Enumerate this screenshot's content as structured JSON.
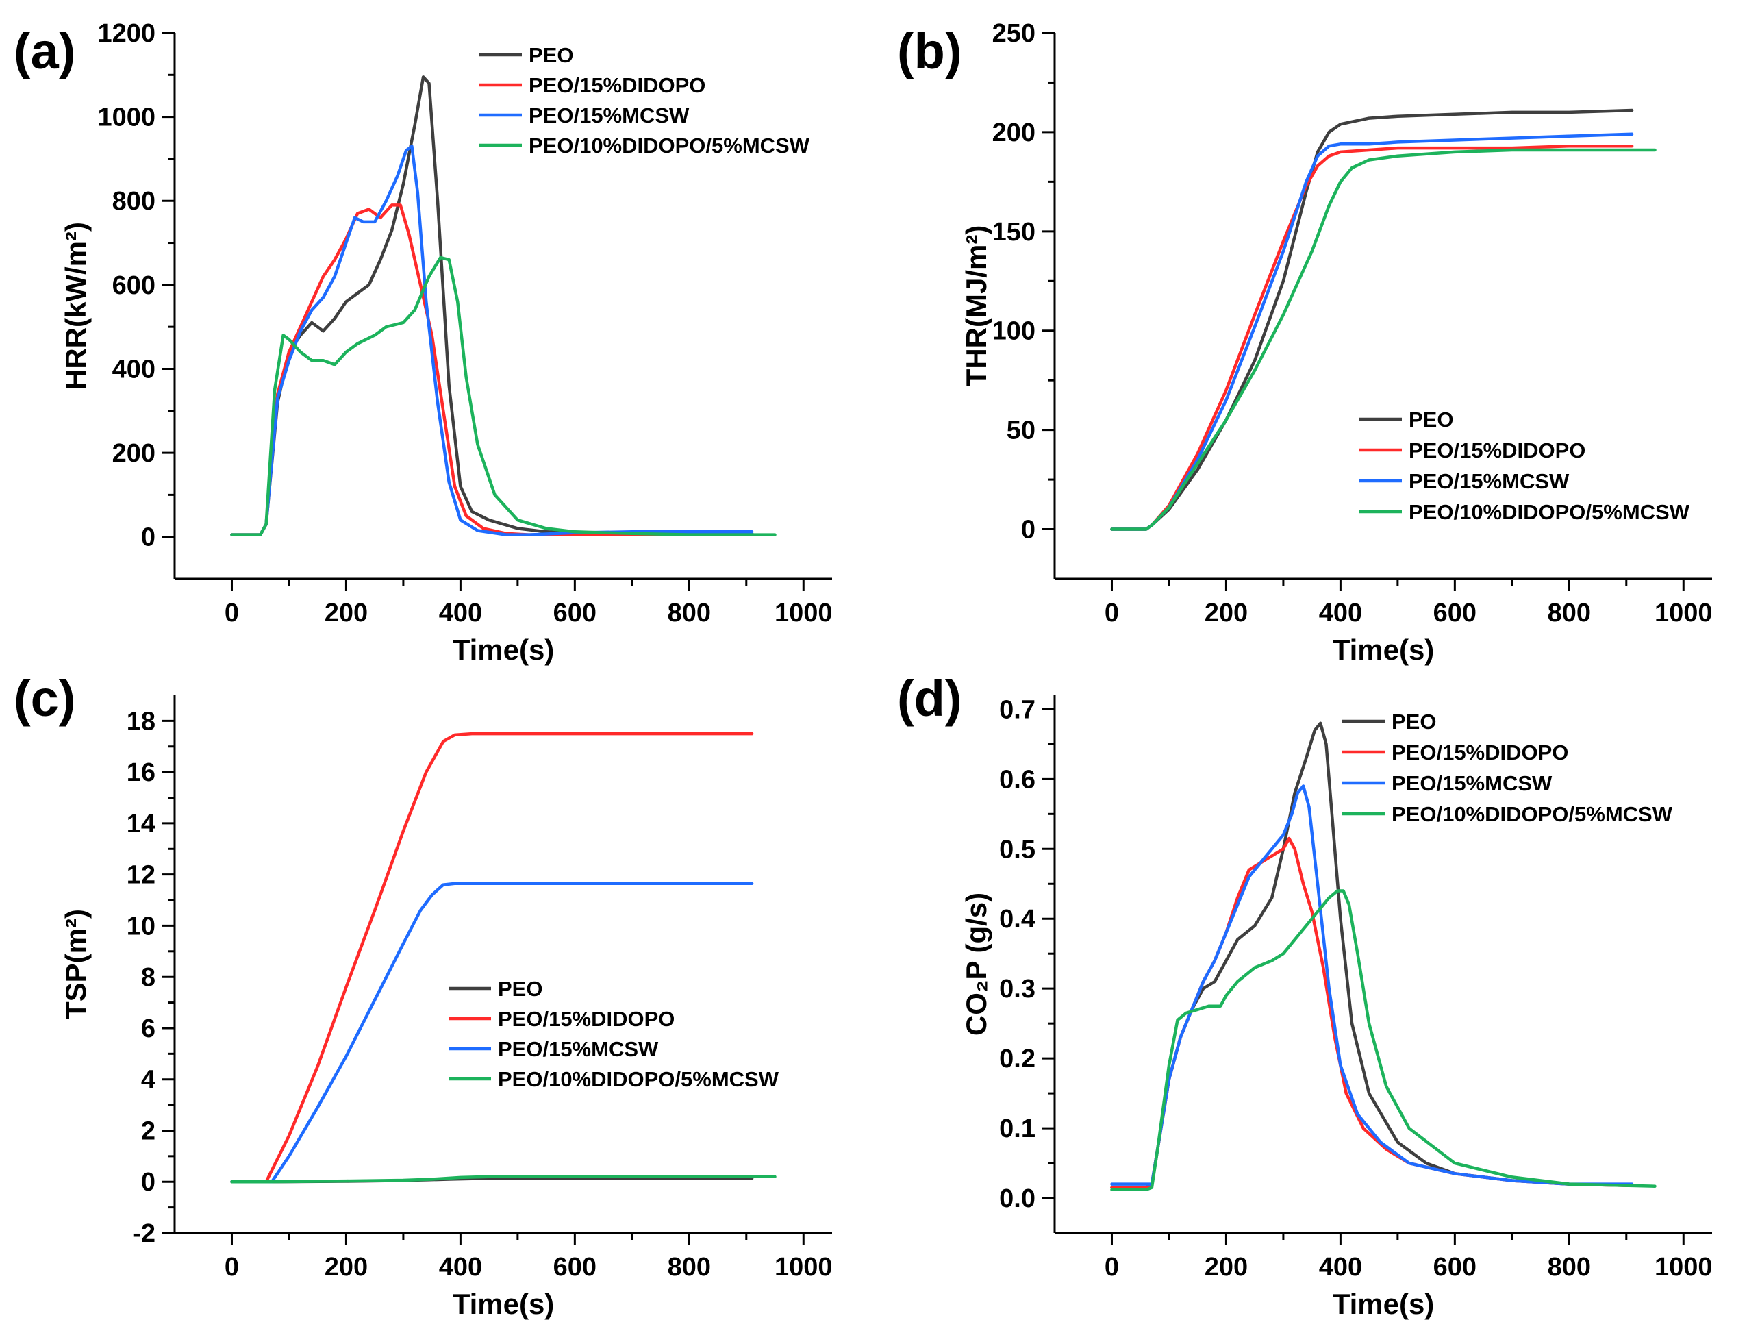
{
  "chart_data": [
    {
      "type": "line",
      "panel_label": "(a)",
      "xlabel": "Time(s)",
      "ylabel": "HRR(kW/m²)",
      "xlim": [
        -100,
        1050
      ],
      "ylim": [
        -100,
        1200
      ],
      "xticks": [
        0,
        200,
        400,
        600,
        800,
        1000
      ],
      "xtick_labels": [
        "0",
        "200",
        "400",
        "600",
        "800",
        "1000"
      ],
      "yticks": [
        0,
        200,
        400,
        600,
        800,
        1000,
        1200
      ],
      "ytick_labels": [
        "0",
        "200",
        "400",
        "600",
        "800",
        "1000",
        "1200"
      ],
      "legend_position": "top-right",
      "series": [
        {
          "name": "PEO",
          "color": "#3f3f3f",
          "x": [
            0,
            50,
            60,
            80,
            100,
            120,
            140,
            160,
            180,
            200,
            220,
            240,
            260,
            280,
            300,
            320,
            335,
            345,
            360,
            380,
            400,
            420,
            450,
            500,
            550,
            600,
            700,
            800,
            910
          ],
          "y": [
            5,
            5,
            30,
            320,
            440,
            480,
            510,
            490,
            520,
            560,
            580,
            600,
            660,
            730,
            840,
            980,
            1095,
            1080,
            800,
            360,
            120,
            60,
            40,
            20,
            12,
            10,
            8,
            8,
            8
          ]
        },
        {
          "name": "PEO/15%DIDOPO",
          "color": "#ff2a2a",
          "x": [
            0,
            50,
            60,
            80,
            100,
            120,
            140,
            160,
            180,
            200,
            220,
            240,
            260,
            280,
            295,
            310,
            330,
            350,
            370,
            390,
            410,
            440,
            480,
            520,
            600,
            700,
            800,
            910
          ],
          "y": [
            5,
            5,
            30,
            340,
            440,
            500,
            560,
            620,
            660,
            710,
            770,
            780,
            760,
            790,
            790,
            720,
            600,
            480,
            300,
            120,
            50,
            20,
            8,
            5,
            5,
            5,
            5,
            5
          ]
        },
        {
          "name": "PEO/15%MCSW",
          "color": "#1f6cff",
          "x": [
            0,
            50,
            60,
            80,
            100,
            120,
            140,
            160,
            180,
            200,
            215,
            230,
            250,
            270,
            290,
            305,
            315,
            325,
            340,
            360,
            380,
            400,
            430,
            480,
            520,
            600,
            700,
            800,
            910
          ],
          "y": [
            5,
            5,
            30,
            330,
            420,
            490,
            540,
            570,
            620,
            700,
            760,
            750,
            750,
            800,
            860,
            920,
            930,
            820,
            560,
            320,
            130,
            40,
            15,
            5,
            5,
            10,
            12,
            12,
            12
          ]
        },
        {
          "name": "PEO/10%DIDOPO/5%MCSW",
          "color": "#1db35c",
          "x": [
            0,
            50,
            60,
            75,
            90,
            100,
            120,
            140,
            160,
            180,
            200,
            220,
            250,
            270,
            300,
            320,
            345,
            365,
            380,
            395,
            410,
            430,
            460,
            500,
            550,
            600,
            700,
            800,
            950
          ],
          "y": [
            5,
            5,
            30,
            350,
            480,
            470,
            440,
            420,
            420,
            410,
            440,
            460,
            480,
            500,
            510,
            540,
            620,
            665,
            660,
            560,
            380,
            220,
            100,
            40,
            20,
            12,
            8,
            5,
            5
          ]
        }
      ]
    },
    {
      "type": "line",
      "panel_label": "(b)",
      "xlabel": "Time(s)",
      "ylabel": "THR(MJ/m²)",
      "xlim": [
        -100,
        1050
      ],
      "ylim": [
        -25,
        250
      ],
      "xticks": [
        0,
        200,
        400,
        600,
        800,
        1000
      ],
      "xtick_labels": [
        "0",
        "200",
        "400",
        "600",
        "800",
        "1000"
      ],
      "yticks": [
        0,
        50,
        100,
        150,
        200,
        250
      ],
      "ytick_labels": [
        "0",
        "50",
        "100",
        "150",
        "200",
        "250"
      ],
      "legend_position": "bottom-right",
      "series": [
        {
          "name": "PEO",
          "color": "#3f3f3f",
          "x": [
            0,
            60,
            70,
            100,
            150,
            200,
            250,
            300,
            340,
            360,
            380,
            400,
            450,
            500,
            600,
            700,
            800,
            910
          ],
          "y": [
            0,
            0,
            2,
            10,
            30,
            55,
            85,
            125,
            170,
            190,
            200,
            204,
            207,
            208,
            209,
            210,
            210,
            211
          ]
        },
        {
          "name": "PEO/15%DIDOPO",
          "color": "#ff2a2a",
          "x": [
            0,
            60,
            70,
            100,
            150,
            200,
            250,
            300,
            340,
            360,
            380,
            400,
            450,
            500,
            600,
            700,
            800,
            910
          ],
          "y": [
            0,
            0,
            2,
            12,
            38,
            70,
            108,
            145,
            173,
            183,
            188,
            190,
            191,
            192,
            192,
            192,
            193,
            193
          ]
        },
        {
          "name": "PEO/15%MCSW",
          "color": "#1f6cff",
          "x": [
            0,
            60,
            70,
            100,
            150,
            200,
            250,
            300,
            340,
            360,
            380,
            400,
            450,
            500,
            600,
            700,
            800,
            910
          ],
          "y": [
            0,
            0,
            2,
            11,
            35,
            65,
            102,
            140,
            175,
            188,
            193,
            194,
            194,
            195,
            196,
            197,
            198,
            199
          ]
        },
        {
          "name": "PEO/10%DIDOPO/5%MCSW",
          "color": "#1db35c",
          "x": [
            0,
            60,
            70,
            100,
            150,
            200,
            250,
            300,
            350,
            380,
            400,
            420,
            450,
            500,
            600,
            700,
            800,
            950
          ],
          "y": [
            0,
            0,
            2,
            11,
            33,
            55,
            80,
            108,
            140,
            163,
            175,
            182,
            186,
            188,
            190,
            191,
            191,
            191
          ]
        }
      ]
    },
    {
      "type": "line",
      "panel_label": "(c)",
      "xlabel": "Time(s)",
      "ylabel": "TSP(m²)",
      "xlim": [
        -100,
        1050
      ],
      "ylim": [
        -2,
        19
      ],
      "xticks": [
        0,
        200,
        400,
        600,
        800,
        1000
      ],
      "xtick_labels": [
        "0",
        "200",
        "400",
        "600",
        "800",
        "1000"
      ],
      "yticks": [
        -2,
        0,
        2,
        4,
        6,
        8,
        10,
        12,
        14,
        16,
        18
      ],
      "ytick_labels": [
        "-2",
        "0",
        "2",
        "4",
        "6",
        "8",
        "10",
        "12",
        "14",
        "16",
        "18"
      ],
      "legend_position": "center-right",
      "series": [
        {
          "name": "PEO",
          "color": "#3f3f3f",
          "x": [
            0,
            60,
            200,
            300,
            380,
            420,
            600,
            800,
            910
          ],
          "y": [
            0,
            0,
            0.02,
            0.05,
            0.1,
            0.12,
            0.12,
            0.13,
            0.13
          ]
        },
        {
          "name": "PEO/15%DIDOPO",
          "color": "#ff2a2a",
          "x": [
            0,
            60,
            100,
            150,
            200,
            250,
            300,
            340,
            370,
            390,
            420,
            500,
            600,
            700,
            800,
            910
          ],
          "y": [
            0,
            0,
            1.8,
            4.5,
            7.6,
            10.6,
            13.7,
            16.0,
            17.2,
            17.45,
            17.5,
            17.5,
            17.5,
            17.5,
            17.5,
            17.5
          ]
        },
        {
          "name": "PEO/15%MCSW",
          "color": "#1f6cff",
          "x": [
            0,
            70,
            100,
            150,
            200,
            250,
            300,
            330,
            350,
            370,
            390,
            420,
            500,
            600,
            700,
            800,
            910
          ],
          "y": [
            0,
            0,
            1.0,
            2.9,
            4.9,
            7.1,
            9.3,
            10.6,
            11.2,
            11.6,
            11.65,
            11.65,
            11.65,
            11.65,
            11.65,
            11.65,
            11.65
          ]
        },
        {
          "name": "PEO/10%DIDOPO/5%MCSW",
          "color": "#1db35c",
          "x": [
            0,
            60,
            200,
            300,
            350,
            400,
            450,
            600,
            800,
            950
          ],
          "y": [
            0,
            0,
            0.03,
            0.06,
            0.1,
            0.17,
            0.2,
            0.2,
            0.2,
            0.2
          ]
        }
      ]
    },
    {
      "type": "line",
      "panel_label": "(d)",
      "xlabel": "Time(s)",
      "ylabel": "CO₂P (g/s)",
      "xlim": [
        -100,
        1050
      ],
      "ylim": [
        -0.05,
        0.72
      ],
      "xticks": [
        0,
        200,
        400,
        600,
        800,
        1000
      ],
      "xtick_labels": [
        "0",
        "200",
        "400",
        "600",
        "800",
        "1000"
      ],
      "yticks": [
        0,
        0.1,
        0.2,
        0.3,
        0.4,
        0.5,
        0.6,
        0.7
      ],
      "ytick_labels": [
        "0.0",
        "0.1",
        "0.2",
        "0.3",
        "0.4",
        "0.5",
        "0.6",
        "0.7"
      ],
      "legend_position": "top-right",
      "series": [
        {
          "name": "PEO",
          "color": "#3f3f3f",
          "x": [
            0,
            60,
            70,
            80,
            100,
            120,
            140,
            160,
            180,
            200,
            220,
            250,
            280,
            300,
            320,
            340,
            355,
            365,
            375,
            385,
            400,
            420,
            450,
            500,
            550,
            600,
            700,
            800,
            910
          ],
          "y": [
            0.015,
            0.015,
            0.02,
            0.07,
            0.17,
            0.23,
            0.27,
            0.3,
            0.31,
            0.34,
            0.37,
            0.39,
            0.43,
            0.5,
            0.58,
            0.63,
            0.67,
            0.68,
            0.65,
            0.55,
            0.4,
            0.25,
            0.15,
            0.08,
            0.05,
            0.035,
            0.025,
            0.02,
            0.018
          ]
        },
        {
          "name": "PEO/15%DIDOPO",
          "color": "#ff2a2a",
          "x": [
            0,
            60,
            70,
            80,
            100,
            120,
            140,
            160,
            180,
            200,
            220,
            240,
            260,
            280,
            300,
            310,
            320,
            335,
            350,
            370,
            390,
            410,
            440,
            480,
            520,
            600,
            700,
            800,
            910
          ],
          "y": [
            0.015,
            0.015,
            0.02,
            0.07,
            0.17,
            0.23,
            0.27,
            0.31,
            0.34,
            0.38,
            0.43,
            0.47,
            0.48,
            0.49,
            0.5,
            0.515,
            0.5,
            0.45,
            0.41,
            0.33,
            0.23,
            0.15,
            0.1,
            0.07,
            0.05,
            0.035,
            0.025,
            0.02,
            0.018
          ]
        },
        {
          "name": "PEO/15%MCSW",
          "color": "#1f6cff",
          "x": [
            0,
            60,
            70,
            80,
            100,
            120,
            140,
            160,
            180,
            200,
            220,
            240,
            260,
            280,
            300,
            315,
            325,
            335,
            345,
            360,
            380,
            400,
            430,
            470,
            520,
            600,
            700,
            800,
            910
          ],
          "y": [
            0.02,
            0.02,
            0.02,
            0.07,
            0.17,
            0.23,
            0.27,
            0.31,
            0.34,
            0.38,
            0.42,
            0.46,
            0.48,
            0.5,
            0.52,
            0.55,
            0.58,
            0.59,
            0.56,
            0.45,
            0.3,
            0.19,
            0.12,
            0.08,
            0.05,
            0.035,
            0.025,
            0.02,
            0.02
          ]
        },
        {
          "name": "PEO/10%DIDOPO/5%MCSW",
          "color": "#1db35c",
          "x": [
            0,
            60,
            70,
            80,
            100,
            115,
            130,
            150,
            170,
            190,
            200,
            220,
            250,
            280,
            300,
            320,
            340,
            360,
            380,
            395,
            405,
            415,
            430,
            450,
            480,
            520,
            600,
            700,
            800,
            950
          ],
          "y": [
            0.012,
            0.012,
            0.015,
            0.07,
            0.19,
            0.255,
            0.265,
            0.27,
            0.275,
            0.275,
            0.29,
            0.31,
            0.33,
            0.34,
            0.35,
            0.37,
            0.39,
            0.41,
            0.43,
            0.44,
            0.44,
            0.42,
            0.35,
            0.25,
            0.16,
            0.1,
            0.05,
            0.03,
            0.02,
            0.017
          ]
        }
      ]
    }
  ]
}
